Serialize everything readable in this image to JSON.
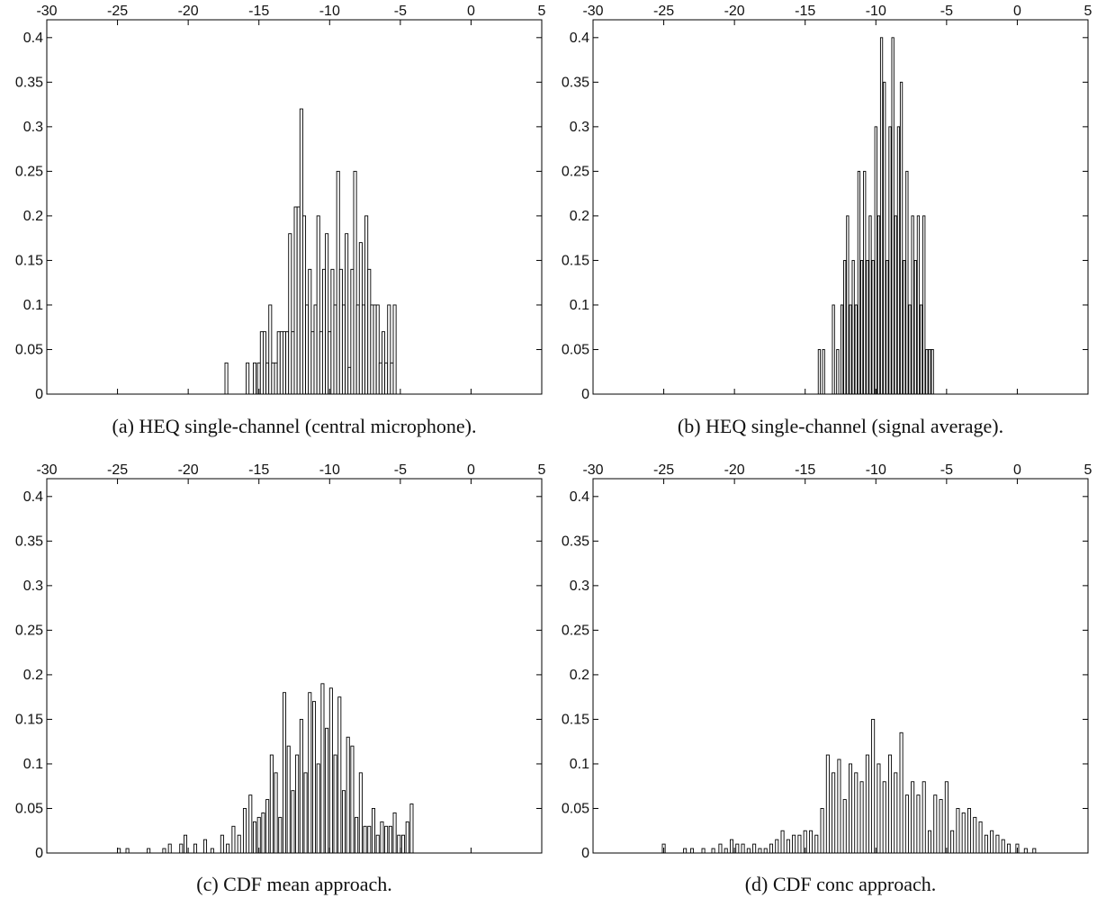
{
  "chart_data": [
    {
      "type": "bar",
      "caption": "(a)  HEQ single-channel (central microphone).",
      "xlim": [
        -30,
        5
      ],
      "ylim": [
        0,
        0.42
      ],
      "xticks": [
        "-30",
        "-25",
        "-20",
        "-15",
        "-10",
        "-5",
        "0",
        "5"
      ],
      "yticks": [
        "0",
        "0.05",
        "0.1",
        "0.15",
        "0.2",
        "0.25",
        "0.3",
        "0.35",
        "0.4"
      ],
      "grid": false,
      "bar_width": 0.2,
      "x": [
        -17.3,
        -15.8,
        -15.3,
        -15.0,
        -14.8,
        -14.6,
        -14.4,
        -14.2,
        -14.0,
        -13.8,
        -13.6,
        -13.4,
        -13.2,
        -13.0,
        -12.8,
        -12.6,
        -12.4,
        -12.2,
        -12.0,
        -11.8,
        -11.6,
        -11.4,
        -11.2,
        -11.0,
        -10.8,
        -10.6,
        -10.4,
        -10.2,
        -10.0,
        -9.8,
        -9.6,
        -9.4,
        -9.2,
        -9.0,
        -8.8,
        -8.6,
        -8.4,
        -8.2,
        -8.0,
        -7.8,
        -7.6,
        -7.4,
        -7.2,
        -7.0,
        -6.8,
        -6.6,
        -6.4,
        -6.2,
        -6.0,
        -5.8,
        -5.6,
        -5.4
      ],
      "values": [
        0.035,
        0.035,
        0.035,
        0.035,
        0.07,
        0.07,
        0.035,
        0.1,
        0.035,
        0.035,
        0.07,
        0.07,
        0.07,
        0.07,
        0.18,
        0.07,
        0.21,
        0.21,
        0.32,
        0.2,
        0.1,
        0.14,
        0.07,
        0.1,
        0.2,
        0.07,
        0.14,
        0.18,
        0.07,
        0.14,
        0.1,
        0.25,
        0.14,
        0.1,
        0.18,
        0.03,
        0.14,
        0.25,
        0.1,
        0.17,
        0.1,
        0.2,
        0.14,
        0.1,
        0.1,
        0.1,
        0.035,
        0.07,
        0.035,
        0.1,
        0.035,
        0.1
      ]
    },
    {
      "type": "bar",
      "caption": "(b)  HEQ single-channel (signal average).",
      "xlim": [
        -30,
        5
      ],
      "ylim": [
        0,
        0.42
      ],
      "xticks": [
        "-30",
        "-25",
        "-20",
        "-15",
        "-10",
        "-5",
        "0",
        "5"
      ],
      "yticks": [
        "0",
        "0.05",
        "0.1",
        "0.15",
        "0.2",
        "0.25",
        "0.3",
        "0.35",
        "0.4"
      ],
      "grid": false,
      "bar_width": 0.15,
      "x": [
        -14.0,
        -13.7,
        -13.0,
        -12.7,
        -12.4,
        -12.2,
        -12.0,
        -11.8,
        -11.6,
        -11.4,
        -11.2,
        -11.0,
        -10.8,
        -10.6,
        -10.4,
        -10.2,
        -10.0,
        -9.8,
        -9.6,
        -9.4,
        -9.2,
        -9.0,
        -8.8,
        -8.6,
        -8.4,
        -8.2,
        -8.0,
        -7.8,
        -7.6,
        -7.4,
        -7.2,
        -7.0,
        -6.8,
        -6.6,
        -6.4,
        -6.2,
        -6.0
      ],
      "values": [
        0.05,
        0.05,
        0.1,
        0.05,
        0.1,
        0.15,
        0.2,
        0.1,
        0.15,
        0.1,
        0.25,
        0.15,
        0.25,
        0.15,
        0.2,
        0.15,
        0.3,
        0.2,
        0.4,
        0.35,
        0.15,
        0.3,
        0.4,
        0.2,
        0.3,
        0.35,
        0.15,
        0.25,
        0.1,
        0.2,
        0.15,
        0.2,
        0.1,
        0.2,
        0.05,
        0.05,
        0.05
      ]
    },
    {
      "type": "bar",
      "caption": "(c)  CDF mean approach.",
      "xlim": [
        -30,
        5
      ],
      "ylim": [
        0,
        0.42
      ],
      "xticks": [
        "-30",
        "-25",
        "-20",
        "-15",
        "-10",
        "-5",
        "0",
        "5"
      ],
      "yticks": [
        "0",
        "0.05",
        "0.1",
        "0.15",
        "0.2",
        "0.25",
        "0.3",
        "0.35",
        "0.4"
      ],
      "grid": false,
      "bar_width": 0.2,
      "x": [
        -24.9,
        -24.3,
        -22.8,
        -21.7,
        -21.3,
        -20.5,
        -20.2,
        -19.5,
        -18.8,
        -18.3,
        -17.6,
        -17.2,
        -16.8,
        -16.4,
        -16.0,
        -15.6,
        -15.3,
        -15.0,
        -14.7,
        -14.4,
        -14.1,
        -13.8,
        -13.5,
        -13.2,
        -12.9,
        -12.6,
        -12.3,
        -12.0,
        -11.7,
        -11.4,
        -11.1,
        -10.8,
        -10.5,
        -10.2,
        -9.9,
        -9.6,
        -9.3,
        -9.0,
        -8.7,
        -8.4,
        -8.1,
        -7.8,
        -7.5,
        -7.2,
        -6.9,
        -6.6,
        -6.3,
        -6.0,
        -5.7,
        -5.4,
        -5.1,
        -4.8,
        -4.5,
        -4.2
      ],
      "values": [
        0.005,
        0.005,
        0.005,
        0.005,
        0.01,
        0.01,
        0.02,
        0.01,
        0.015,
        0.005,
        0.02,
        0.01,
        0.03,
        0.02,
        0.05,
        0.065,
        0.035,
        0.04,
        0.045,
        0.06,
        0.11,
        0.09,
        0.04,
        0.18,
        0.12,
        0.07,
        0.11,
        0.15,
        0.09,
        0.18,
        0.17,
        0.1,
        0.19,
        0.14,
        0.185,
        0.11,
        0.175,
        0.07,
        0.13,
        0.12,
        0.04,
        0.09,
        0.03,
        0.03,
        0.05,
        0.02,
        0.035,
        0.03,
        0.03,
        0.045,
        0.02,
        0.02,
        0.035,
        0.055
      ]
    },
    {
      "type": "bar",
      "caption": "(d)  CDF conc approach.",
      "xlim": [
        -30,
        5
      ],
      "ylim": [
        0,
        0.42
      ],
      "xticks": [
        "-30",
        "-25",
        "-20",
        "-15",
        "-10",
        "-5",
        "0",
        "5"
      ],
      "yticks": [
        "0",
        "0.05",
        "0.1",
        "0.15",
        "0.2",
        "0.25",
        "0.3",
        "0.35",
        "0.4"
      ],
      "grid": false,
      "bar_width": 0.2,
      "x": [
        -25.0,
        -23.5,
        -23.0,
        -22.2,
        -21.5,
        -21.0,
        -20.6,
        -20.2,
        -19.8,
        -19.4,
        -19.0,
        -18.6,
        -18.2,
        -17.8,
        -17.4,
        -17.0,
        -16.6,
        -16.2,
        -15.8,
        -15.4,
        -15.0,
        -14.6,
        -14.2,
        -13.8,
        -13.4,
        -13.0,
        -12.6,
        -12.2,
        -11.8,
        -11.4,
        -11.0,
        -10.6,
        -10.2,
        -9.8,
        -9.4,
        -9.0,
        -8.6,
        -8.2,
        -7.8,
        -7.4,
        -7.0,
        -6.6,
        -6.2,
        -5.8,
        -5.4,
        -5.0,
        -4.6,
        -4.2,
        -3.8,
        -3.4,
        -3.0,
        -2.6,
        -2.2,
        -1.8,
        -1.4,
        -1.0,
        -0.6,
        0.0,
        0.6,
        1.2
      ],
      "values": [
        0.01,
        0.005,
        0.005,
        0.005,
        0.005,
        0.01,
        0.005,
        0.015,
        0.01,
        0.01,
        0.005,
        0.01,
        0.005,
        0.005,
        0.01,
        0.015,
        0.025,
        0.015,
        0.02,
        0.02,
        0.025,
        0.025,
        0.02,
        0.05,
        0.11,
        0.09,
        0.105,
        0.06,
        0.1,
        0.09,
        0.08,
        0.11,
        0.15,
        0.1,
        0.08,
        0.11,
        0.09,
        0.135,
        0.065,
        0.08,
        0.065,
        0.08,
        0.025,
        0.065,
        0.06,
        0.08,
        0.025,
        0.05,
        0.045,
        0.05,
        0.04,
        0.035,
        0.02,
        0.025,
        0.02,
        0.015,
        0.01,
        0.01,
        0.005,
        0.005
      ]
    }
  ]
}
